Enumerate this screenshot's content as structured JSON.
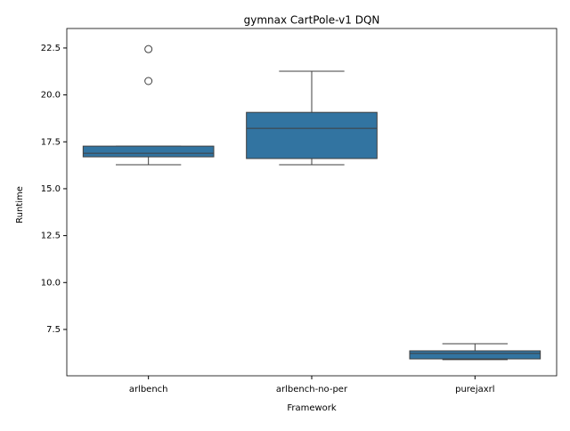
{
  "chart_data": {
    "type": "box",
    "title": "gymnax CartPole-v1 DQN",
    "x_label": "Framework",
    "y_label": "Runtime",
    "categories": [
      "arlbench",
      "arlbench-no-per",
      "purejaxrl"
    ],
    "color": "#3274a1",
    "boxes": [
      {
        "whislo": 16.28,
        "q1": 16.7,
        "med": 16.89,
        "q3": 17.27,
        "whishi": 17.27,
        "fliers": [
          20.74,
          22.44
        ]
      },
      {
        "whislo": 16.28,
        "q1": 16.61,
        "med": 18.22,
        "q3": 19.07,
        "whishi": 21.26,
        "fliers": []
      },
      {
        "whislo": 5.89,
        "q1": 5.93,
        "med": 6.22,
        "q3": 6.36,
        "whishi": 6.74,
        "fliers": []
      }
    ],
    "ylim": [
      5.03,
      23.54
    ],
    "yticks": [
      7.5,
      {
        "value": 10,
        "label": "10.0"
      },
      12.5,
      {
        "value": 15,
        "label": "15.0"
      },
      17.5,
      {
        "value": 20,
        "label": "20.0"
      },
      22.5
    ]
  }
}
